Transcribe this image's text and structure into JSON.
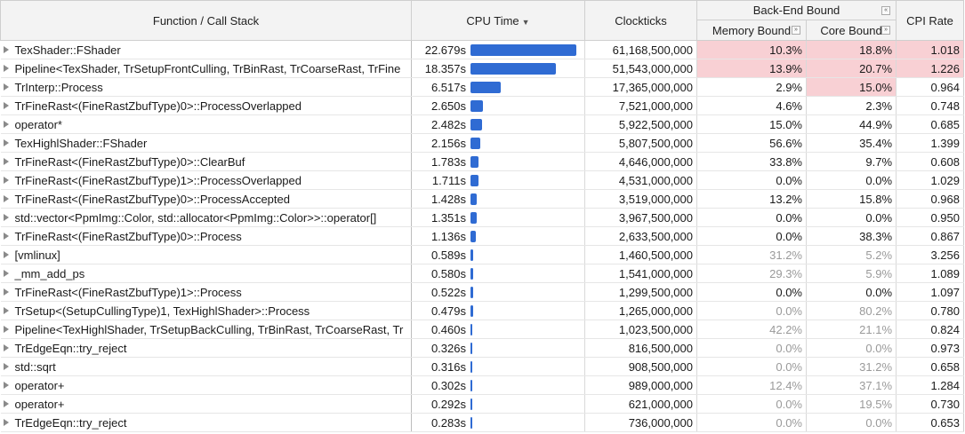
{
  "header": {
    "function": "Function / Call Stack",
    "cpu_time": "CPU Time",
    "sort_icon": "▼",
    "clockticks": "Clockticks",
    "backend_bound": "Back-End Bound",
    "memory_bound": "Memory Bound",
    "core_bound": "Core Bound",
    "cpi_rate": "CPI Rate",
    "collapse_glyph": "«",
    "expand_glyph": "»"
  },
  "colors": {
    "bar": "#2f6bd3",
    "highlight": "#f8d0d4"
  },
  "rows": [
    {
      "fn": "TexShader::FShader",
      "cpu": "22.679s",
      "cpu_sec": 22.679,
      "clk": "61,168,500,000",
      "mem": "10.3%",
      "core": "18.8%",
      "cpi": "1.018",
      "mem_hl": true,
      "core_hl": true,
      "cpi_hl": true,
      "mem_grey": false,
      "core_grey": false
    },
    {
      "fn": "Pipeline<TexShader, TrSetupFrontCulling, TrBinRast, TrCoarseRast, TrFine",
      "cpu": "18.357s",
      "cpu_sec": 18.357,
      "clk": "51,543,000,000",
      "mem": "13.9%",
      "core": "20.7%",
      "cpi": "1.226",
      "mem_hl": true,
      "core_hl": true,
      "cpi_hl": true,
      "mem_grey": false,
      "core_grey": false
    },
    {
      "fn": "TrInterp::Process",
      "cpu": "6.517s",
      "cpu_sec": 6.517,
      "clk": "17,365,000,000",
      "mem": "2.9%",
      "core": "15.0%",
      "cpi": "0.964",
      "mem_hl": false,
      "core_hl": true,
      "cpi_hl": false,
      "mem_grey": false,
      "core_grey": false
    },
    {
      "fn": "TrFineRast<(FineRastZbufType)0>::ProcessOverlapped",
      "cpu": "2.650s",
      "cpu_sec": 2.65,
      "clk": "7,521,000,000",
      "mem": "4.6%",
      "core": "2.3%",
      "cpi": "0.748",
      "mem_hl": false,
      "core_hl": false,
      "cpi_hl": false,
      "mem_grey": false,
      "core_grey": false
    },
    {
      "fn": "operator*",
      "cpu": "2.482s",
      "cpu_sec": 2.482,
      "clk": "5,922,500,000",
      "mem": "15.0%",
      "core": "44.9%",
      "cpi": "0.685",
      "mem_hl": false,
      "core_hl": false,
      "cpi_hl": false,
      "mem_grey": false,
      "core_grey": false
    },
    {
      "fn": "TexHighlShader::FShader",
      "cpu": "2.156s",
      "cpu_sec": 2.156,
      "clk": "5,807,500,000",
      "mem": "56.6%",
      "core": "35.4%",
      "cpi": "1.399",
      "mem_hl": false,
      "core_hl": false,
      "cpi_hl": false,
      "mem_grey": false,
      "core_grey": false
    },
    {
      "fn": "TrFineRast<(FineRastZbufType)0>::ClearBuf",
      "cpu": "1.783s",
      "cpu_sec": 1.783,
      "clk": "4,646,000,000",
      "mem": "33.8%",
      "core": "9.7%",
      "cpi": "0.608",
      "mem_hl": false,
      "core_hl": false,
      "cpi_hl": false,
      "mem_grey": false,
      "core_grey": false
    },
    {
      "fn": "TrFineRast<(FineRastZbufType)1>::ProcessOverlapped",
      "cpu": "1.711s",
      "cpu_sec": 1.711,
      "clk": "4,531,000,000",
      "mem": "0.0%",
      "core": "0.0%",
      "cpi": "1.029",
      "mem_hl": false,
      "core_hl": false,
      "cpi_hl": false,
      "mem_grey": false,
      "core_grey": false
    },
    {
      "fn": "TrFineRast<(FineRastZbufType)0>::ProcessAccepted",
      "cpu": "1.428s",
      "cpu_sec": 1.428,
      "clk": "3,519,000,000",
      "mem": "13.2%",
      "core": "15.8%",
      "cpi": "0.968",
      "mem_hl": false,
      "core_hl": false,
      "cpi_hl": false,
      "mem_grey": false,
      "core_grey": false
    },
    {
      "fn": "std::vector<PpmImg::Color, std::allocator<PpmImg::Color>>::operator[]",
      "cpu": "1.351s",
      "cpu_sec": 1.351,
      "clk": "3,967,500,000",
      "mem": "0.0%",
      "core": "0.0%",
      "cpi": "0.950",
      "mem_hl": false,
      "core_hl": false,
      "cpi_hl": false,
      "mem_grey": false,
      "core_grey": false
    },
    {
      "fn": "TrFineRast<(FineRastZbufType)0>::Process",
      "cpu": "1.136s",
      "cpu_sec": 1.136,
      "clk": "2,633,500,000",
      "mem": "0.0%",
      "core": "38.3%",
      "cpi": "0.867",
      "mem_hl": false,
      "core_hl": false,
      "cpi_hl": false,
      "mem_grey": false,
      "core_grey": false
    },
    {
      "fn": "[vmlinux]",
      "cpu": "0.589s",
      "cpu_sec": 0.589,
      "clk": "1,460,500,000",
      "mem": "31.2%",
      "core": "5.2%",
      "cpi": "3.256",
      "mem_hl": false,
      "core_hl": false,
      "cpi_hl": false,
      "mem_grey": true,
      "core_grey": true
    },
    {
      "fn": "_mm_add_ps",
      "cpu": "0.580s",
      "cpu_sec": 0.58,
      "clk": "1,541,000,000",
      "mem": "29.3%",
      "core": "5.9%",
      "cpi": "1.089",
      "mem_hl": false,
      "core_hl": false,
      "cpi_hl": false,
      "mem_grey": true,
      "core_grey": true
    },
    {
      "fn": "TrFineRast<(FineRastZbufType)1>::Process",
      "cpu": "0.522s",
      "cpu_sec": 0.522,
      "clk": "1,299,500,000",
      "mem": "0.0%",
      "core": "0.0%",
      "cpi": "1.097",
      "mem_hl": false,
      "core_hl": false,
      "cpi_hl": false,
      "mem_grey": false,
      "core_grey": false
    },
    {
      "fn": "TrSetup<(SetupCullingType)1, TexHighlShader>::Process",
      "cpu": "0.479s",
      "cpu_sec": 0.479,
      "clk": "1,265,000,000",
      "mem": "0.0%",
      "core": "80.2%",
      "cpi": "0.780",
      "mem_hl": false,
      "core_hl": false,
      "cpi_hl": false,
      "mem_grey": true,
      "core_grey": true
    },
    {
      "fn": "Pipeline<TexHighlShader, TrSetupBackCulling, TrBinRast, TrCoarseRast, Tr",
      "cpu": "0.460s",
      "cpu_sec": 0.46,
      "clk": "1,023,500,000",
      "mem": "42.2%",
      "core": "21.1%",
      "cpi": "0.824",
      "mem_hl": false,
      "core_hl": false,
      "cpi_hl": false,
      "mem_grey": true,
      "core_grey": true
    },
    {
      "fn": "TrEdgeEqn::try_reject",
      "cpu": "0.326s",
      "cpu_sec": 0.326,
      "clk": "816,500,000",
      "mem": "0.0%",
      "core": "0.0%",
      "cpi": "0.973",
      "mem_hl": false,
      "core_hl": false,
      "cpi_hl": false,
      "mem_grey": true,
      "core_grey": true
    },
    {
      "fn": "std::sqrt",
      "cpu": "0.316s",
      "cpu_sec": 0.316,
      "clk": "908,500,000",
      "mem": "0.0%",
      "core": "31.2%",
      "cpi": "0.658",
      "mem_hl": false,
      "core_hl": false,
      "cpi_hl": false,
      "mem_grey": true,
      "core_grey": true
    },
    {
      "fn": "operator+",
      "cpu": "0.302s",
      "cpu_sec": 0.302,
      "clk": "989,000,000",
      "mem": "12.4%",
      "core": "37.1%",
      "cpi": "1.284",
      "mem_hl": false,
      "core_hl": false,
      "cpi_hl": false,
      "mem_grey": true,
      "core_grey": true
    },
    {
      "fn": "operator+",
      "cpu": "0.292s",
      "cpu_sec": 0.292,
      "clk": "621,000,000",
      "mem": "0.0%",
      "core": "19.5%",
      "cpi": "0.730",
      "mem_hl": false,
      "core_hl": false,
      "cpi_hl": false,
      "mem_grey": true,
      "core_grey": true
    },
    {
      "fn": "TrEdgeEqn::try_reject",
      "cpu": "0.283s",
      "cpu_sec": 0.283,
      "clk": "736,000,000",
      "mem": "0.0%",
      "core": "0.0%",
      "cpi": "0.653",
      "mem_hl": false,
      "core_hl": false,
      "cpi_hl": false,
      "mem_grey": true,
      "core_grey": true
    }
  ]
}
